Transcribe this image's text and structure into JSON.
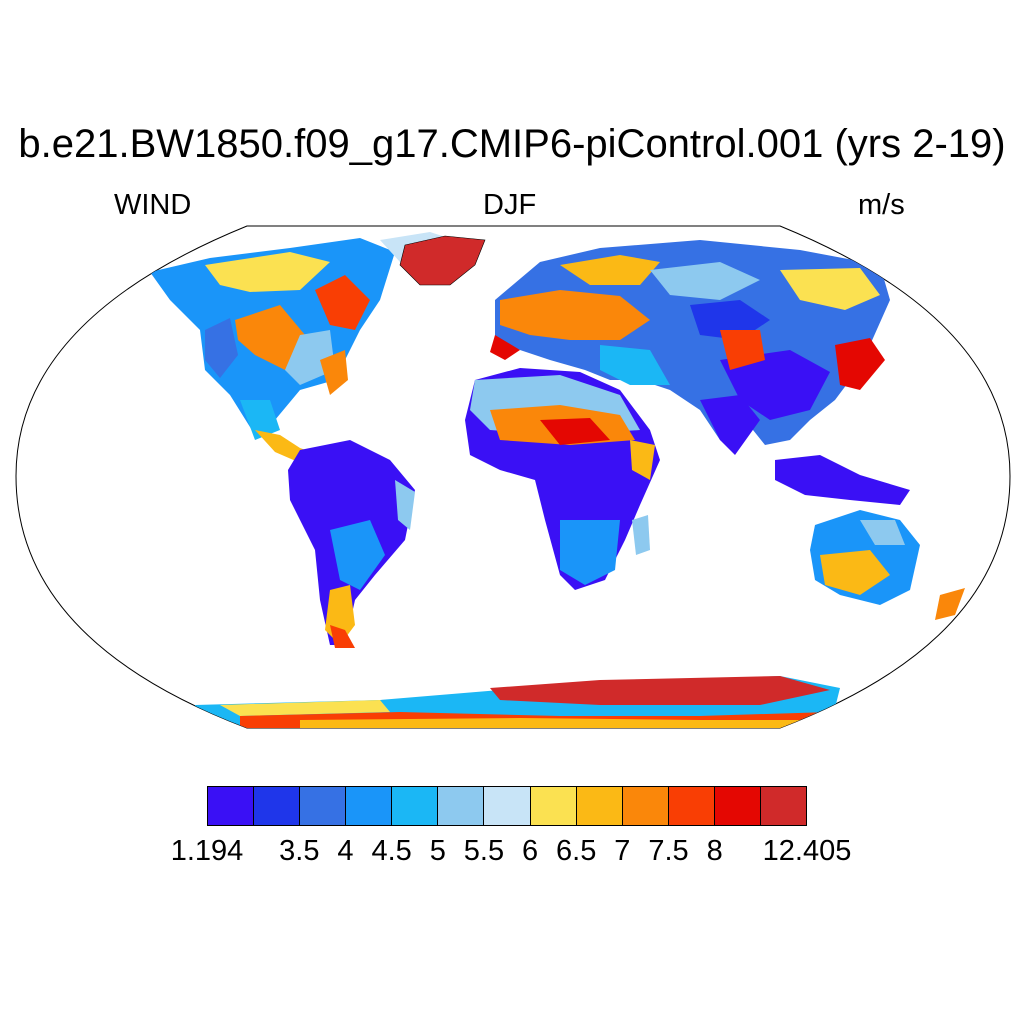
{
  "header": {
    "title": "b.e21.BW1850.f09_g17.CMIP6-piControl.001 (yrs 2-19)",
    "left_label": "WIND",
    "center_label": "DJF",
    "right_label": "m/s"
  },
  "map": {
    "projection": "robinson",
    "ocean_color": "#ffffff",
    "coastline_color": "#000000"
  },
  "colorbar": {
    "colors": [
      "#3a10f5",
      "#1f36ea",
      "#3671e4",
      "#1a95f9",
      "#1bb7f5",
      "#8dc9ef",
      "#c8e4f7",
      "#fbe151",
      "#fbb915",
      "#fa870a",
      "#f93e04",
      "#e40702",
      "#d02a2a"
    ],
    "labels": [
      "1.194",
      "3.5",
      "4",
      "4.5",
      "5",
      "5.5",
      "6",
      "6.5",
      "7",
      "7.5",
      "8",
      "12.405"
    ],
    "label_positions": [
      1,
      3,
      4,
      5,
      6,
      7,
      8,
      9,
      10,
      11,
      12,
      14
    ]
  }
}
